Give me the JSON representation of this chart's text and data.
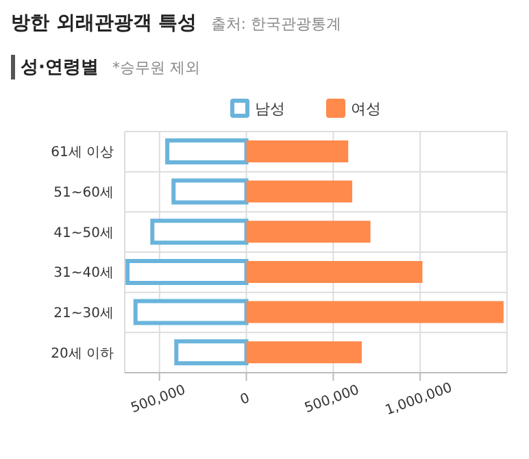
{
  "chart_data": {
    "type": "bar",
    "orientation": "horizontal",
    "stacked": true,
    "title": "방한 외래관광객 특성",
    "subtitle": "성·연령별",
    "annotations": [
      "출처: 한국관광통계",
      "*승무원 제외"
    ],
    "categories": [
      "61세 이상",
      "51~60세",
      "41~50세",
      "31~40세",
      "21~30세",
      "20세 이하"
    ],
    "series": [
      {
        "name": "남성",
        "color": "#6ab4dc",
        "values": [
          -455000,
          -419000,
          -541000,
          -684000,
          -638000,
          -403000
        ]
      },
      {
        "name": "여성",
        "color": "#ff8a4c",
        "values": [
          586000,
          609000,
          714000,
          1013000,
          1480000,
          664000
        ]
      }
    ],
    "xlim": [
      -700000,
      1500000
    ],
    "xticks": [
      {
        "value": -500000,
        "label": "500,000"
      },
      {
        "value": 0,
        "label": "0"
      },
      {
        "value": 500000,
        "label": "500,000"
      },
      {
        "value": 1000000,
        "label": "1,000,000"
      }
    ],
    "grid": true,
    "legend": "top"
  }
}
